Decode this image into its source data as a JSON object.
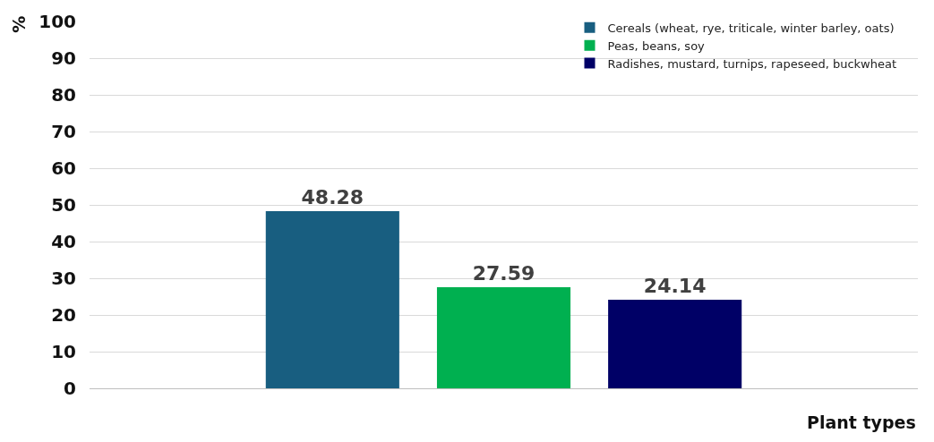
{
  "chart_data": {
    "type": "bar",
    "xlabel": "Plant types",
    "ylabel": "%",
    "categories": [
      null
    ],
    "series": [
      {
        "name": "Cereals (wheat, rye, triticale, winter barley, oats)",
        "color": "#185e80",
        "values": [
          48.28
        ]
      },
      {
        "name": "Peas, beans, soy",
        "color": "#00b050",
        "values": [
          27.59
        ]
      },
      {
        "name": "Radishes, mustard, turnips, rapeseed, buckwheat",
        "color": "#000066",
        "values": [
          24.14
        ]
      }
    ],
    "ylim": [
      0,
      100
    ],
    "yticks": [
      0,
      10,
      20,
      30,
      40,
      50,
      60,
      70,
      80,
      90,
      100
    ],
    "grid": "y",
    "legend": "top right",
    "data_labels": true
  }
}
